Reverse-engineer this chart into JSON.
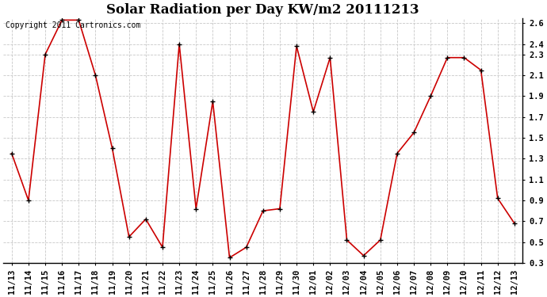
{
  "title": "Solar Radiation per Day KW/m2 20111213",
  "copyright_text": "Copyright 2011 Cartronics.com",
  "labels": [
    "11/13",
    "11/14",
    "11/15",
    "11/16",
    "11/17",
    "11/18",
    "11/19",
    "11/20",
    "11/21",
    "11/22",
    "11/23",
    "11/24",
    "11/25",
    "11/26",
    "11/27",
    "11/28",
    "11/29",
    "11/30",
    "12/01",
    "12/02",
    "12/03",
    "12/04",
    "12/05",
    "12/06",
    "12/07",
    "12/08",
    "12/09",
    "12/10",
    "12/11",
    "12/12",
    "12/13"
  ],
  "values": [
    1.35,
    0.9,
    2.3,
    2.63,
    2.63,
    2.1,
    1.4,
    0.55,
    0.72,
    0.45,
    2.4,
    0.82,
    1.85,
    0.35,
    0.45,
    0.8,
    0.82,
    2.38,
    1.75,
    2.27,
    0.52,
    0.37,
    0.52,
    1.35,
    1.55,
    1.9,
    2.27,
    2.27,
    2.15,
    0.92,
    0.68
  ],
  "line_color": "#cc0000",
  "marker_color": "#000000",
  "bg_color": "#ffffff",
  "grid_color": "#c8c8c8",
  "ylim": [
    0.3,
    2.65
  ],
  "yticks": [
    0.3,
    0.5,
    0.7,
    0.9,
    1.1,
    1.3,
    1.5,
    1.7,
    1.9,
    2.1,
    2.3,
    2.4,
    2.6
  ],
  "ytick_labels": [
    "0.3",
    "0.5",
    "0.7",
    "0.9",
    "1.1",
    "1.3",
    "1.5",
    "1.7",
    "1.9",
    "2.1",
    "2.3",
    "2.4",
    "2.6"
  ],
  "title_fontsize": 12,
  "copyright_fontsize": 7,
  "tick_fontsize": 7.5,
  "figwidth": 6.9,
  "figheight": 3.75,
  "dpi": 100
}
